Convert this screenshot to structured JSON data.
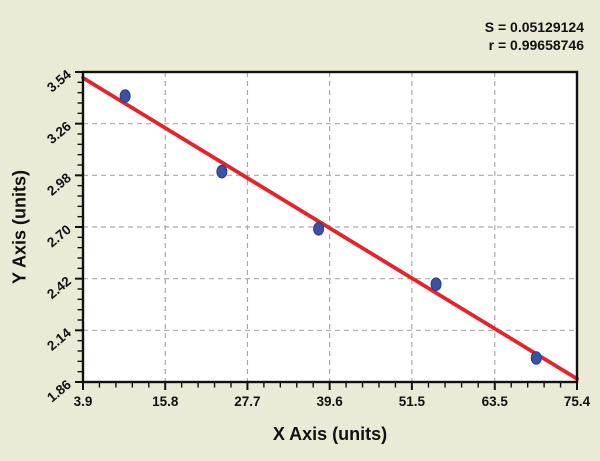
{
  "window": {
    "background": "#EBEAD6"
  },
  "annotation": {
    "s_label": "S = 0.05129124",
    "r_label": "r = 0.99658746"
  },
  "chart_data": {
    "type": "scatter",
    "title": "",
    "xlabel": "X Axis (units)",
    "ylabel": "Y Axis (units)",
    "xlim": [
      3.9,
      75.4
    ],
    "ylim": [
      1.86,
      3.54
    ],
    "x_ticks": [
      3.9,
      15.8,
      27.7,
      39.6,
      51.5,
      63.5,
      75.4
    ],
    "x_tick_labels": [
      "3.9",
      "15.8",
      "27.7",
      "39.6",
      "51.5",
      "63.5",
      "75.4"
    ],
    "y_ticks": [
      1.86,
      2.14,
      2.42,
      2.7,
      2.98,
      3.26,
      3.54
    ],
    "y_tick_labels": [
      "1.86",
      "2.14",
      "2.42",
      "2.70",
      "2.98",
      "3.26",
      "3.54"
    ],
    "minor_divisions": 5,
    "grid": "dashed",
    "legend": "none",
    "points": [
      {
        "x": 10.0,
        "y": 3.41
      },
      {
        "x": 24.0,
        "y": 3.0
      },
      {
        "x": 38.0,
        "y": 2.69
      },
      {
        "x": 55.0,
        "y": 2.39
      },
      {
        "x": 69.5,
        "y": 1.99
      }
    ],
    "fit_line": {
      "type": "linear",
      "slope": -0.0228,
      "intercept": 3.597,
      "S": 0.05129124,
      "r": 0.99658746
    },
    "colors": {
      "background": "#EBEAD6",
      "plot_bg": "#FFFFFF",
      "grid": "#ABABAB",
      "axis": "#111111",
      "fit_line": "#E4232B",
      "point_fill": "#3B51A3",
      "point_stroke": "#2B3C85",
      "text": "#111111"
    }
  }
}
